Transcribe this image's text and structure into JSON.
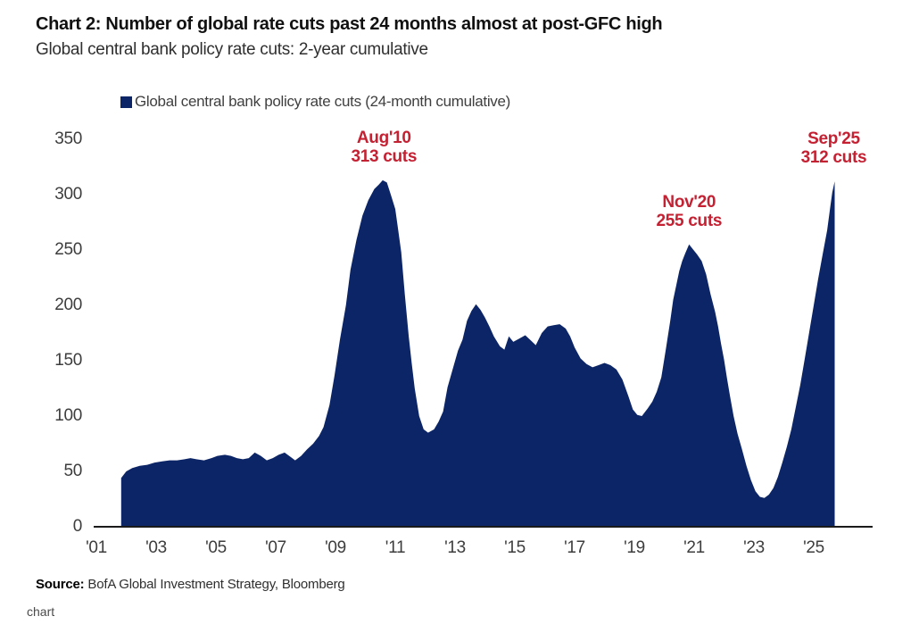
{
  "page": {
    "caption": "chart"
  },
  "header": {
    "title": "Chart 2: Number of global rate cuts past 24 months almost at post-GFC high",
    "subtitle": "Global central bank policy rate cuts: 2-year cumulative"
  },
  "legend": {
    "label": "Global central bank policy rate cuts (24-month cumulative)",
    "marker_color": "#0c2566"
  },
  "source": {
    "label": "Source:",
    "text": " BofA Global Investment Strategy, Bloomberg"
  },
  "chart_data": {
    "type": "area",
    "title": "Chart 2: Number of global rate cuts past 24 months almost at post-GFC high",
    "subtitle": "Global central bank policy rate cuts: 2-year cumulative",
    "series_name": "Global central bank policy rate cuts (24-month cumulative)",
    "fill_color": "#0c2566",
    "annotation_color": "#c42133",
    "axis_color": "#1a1a1a",
    "legend_position": "top",
    "grid": false,
    "ylim": [
      0,
      350
    ],
    "y_ticks": [
      "350",
      "300",
      "250",
      "200",
      "150",
      "100",
      "50",
      "0"
    ],
    "y_tick_values": [
      350,
      300,
      250,
      200,
      150,
      100,
      50,
      0
    ],
    "x_ticks": [
      "'01",
      "'03",
      "'05",
      "'07",
      "'09",
      "'11",
      "'13",
      "'15",
      "'17",
      "'19",
      "'21",
      "'23",
      "'25"
    ],
    "x_tick_years": [
      2001,
      2003,
      2005,
      2007,
      2009,
      2011,
      2013,
      2015,
      2017,
      2019,
      2021,
      2023,
      2025
    ],
    "annotations": [
      {
        "line1": "Aug'10",
        "line2": "313 cuts",
        "year": 2010.62,
        "value": 313
      },
      {
        "line1": "Nov'20",
        "line2": "255 cuts",
        "year": 2020.83,
        "value": 255
      },
      {
        "line1": "Sep'25",
        "line2": "312 cuts",
        "year": 2025.67,
        "value": 312
      }
    ],
    "points": [
      [
        2001.83,
        44
      ],
      [
        2002.0,
        50
      ],
      [
        2002.2,
        53
      ],
      [
        2002.45,
        55
      ],
      [
        2002.7,
        56
      ],
      [
        2002.95,
        58
      ],
      [
        2003.2,
        59
      ],
      [
        2003.45,
        60
      ],
      [
        2003.7,
        60
      ],
      [
        2003.95,
        61
      ],
      [
        2004.15,
        62
      ],
      [
        2004.35,
        61
      ],
      [
        2004.6,
        60
      ],
      [
        2004.85,
        62
      ],
      [
        2005.05,
        64
      ],
      [
        2005.3,
        65
      ],
      [
        2005.5,
        64
      ],
      [
        2005.7,
        62
      ],
      [
        2005.9,
        61
      ],
      [
        2006.1,
        62
      ],
      [
        2006.3,
        67
      ],
      [
        2006.5,
        64
      ],
      [
        2006.7,
        60
      ],
      [
        2006.9,
        62
      ],
      [
        2007.1,
        65
      ],
      [
        2007.3,
        67
      ],
      [
        2007.5,
        63
      ],
      [
        2007.65,
        60
      ],
      [
        2007.85,
        64
      ],
      [
        2008.05,
        70
      ],
      [
        2008.25,
        75
      ],
      [
        2008.45,
        82
      ],
      [
        2008.6,
        90
      ],
      [
        2008.8,
        110
      ],
      [
        2008.97,
        137
      ],
      [
        2009.15,
        169
      ],
      [
        2009.35,
        200
      ],
      [
        2009.5,
        232
      ],
      [
        2009.7,
        259
      ],
      [
        2009.9,
        281
      ],
      [
        2010.1,
        295
      ],
      [
        2010.3,
        305
      ],
      [
        2010.45,
        309
      ],
      [
        2010.58,
        313
      ],
      [
        2010.72,
        311
      ],
      [
        2010.85,
        300
      ],
      [
        2011.0,
        287
      ],
      [
        2011.1,
        268
      ],
      [
        2011.2,
        248
      ],
      [
        2011.32,
        210
      ],
      [
        2011.45,
        172
      ],
      [
        2011.55,
        148
      ],
      [
        2011.65,
        125
      ],
      [
        2011.8,
        100
      ],
      [
        2011.95,
        88
      ],
      [
        2012.1,
        85
      ],
      [
        2012.3,
        88
      ],
      [
        2012.45,
        95
      ],
      [
        2012.6,
        104
      ],
      [
        2012.75,
        126
      ],
      [
        2012.95,
        145
      ],
      [
        2013.1,
        159
      ],
      [
        2013.25,
        169
      ],
      [
        2013.4,
        186
      ],
      [
        2013.55,
        195
      ],
      [
        2013.7,
        201
      ],
      [
        2013.85,
        196
      ],
      [
        2014.0,
        189
      ],
      [
        2014.15,
        181
      ],
      [
        2014.3,
        172
      ],
      [
        2014.5,
        163
      ],
      [
        2014.65,
        160
      ],
      [
        2014.8,
        172
      ],
      [
        2014.95,
        167
      ],
      [
        2015.15,
        170
      ],
      [
        2015.35,
        173
      ],
      [
        2015.55,
        168
      ],
      [
        2015.7,
        164
      ],
      [
        2015.9,
        175
      ],
      [
        2016.1,
        181
      ],
      [
        2016.3,
        182
      ],
      [
        2016.5,
        183
      ],
      [
        2016.7,
        179
      ],
      [
        2016.85,
        172
      ],
      [
        2017.0,
        162
      ],
      [
        2017.2,
        152
      ],
      [
        2017.4,
        147
      ],
      [
        2017.6,
        144
      ],
      [
        2017.8,
        146
      ],
      [
        2018.0,
        148
      ],
      [
        2018.2,
        146
      ],
      [
        2018.4,
        142
      ],
      [
        2018.6,
        133
      ],
      [
        2018.8,
        118
      ],
      [
        2018.95,
        106
      ],
      [
        2019.1,
        101
      ],
      [
        2019.25,
        100
      ],
      [
        2019.45,
        107
      ],
      [
        2019.6,
        113
      ],
      [
        2019.75,
        122
      ],
      [
        2019.9,
        135
      ],
      [
        2020.05,
        160
      ],
      [
        2020.2,
        186
      ],
      [
        2020.3,
        205
      ],
      [
        2020.4,
        218
      ],
      [
        2020.5,
        231
      ],
      [
        2020.6,
        240
      ],
      [
        2020.7,
        247
      ],
      [
        2020.83,
        255
      ],
      [
        2020.95,
        251
      ],
      [
        2021.1,
        246
      ],
      [
        2021.25,
        240
      ],
      [
        2021.4,
        228
      ],
      [
        2021.55,
        210
      ],
      [
        2021.7,
        194
      ],
      [
        2021.8,
        181
      ],
      [
        2021.9,
        165
      ],
      [
        2022.0,
        151
      ],
      [
        2022.1,
        134
      ],
      [
        2022.2,
        118
      ],
      [
        2022.32,
        100
      ],
      [
        2022.45,
        84
      ],
      [
        2022.6,
        70
      ],
      [
        2022.75,
        55
      ],
      [
        2022.9,
        42
      ],
      [
        2023.05,
        32
      ],
      [
        2023.2,
        27
      ],
      [
        2023.35,
        26
      ],
      [
        2023.5,
        29
      ],
      [
        2023.65,
        35
      ],
      [
        2023.8,
        45
      ],
      [
        2023.95,
        58
      ],
      [
        2024.1,
        72
      ],
      [
        2024.25,
        88
      ],
      [
        2024.4,
        108
      ],
      [
        2024.55,
        128
      ],
      [
        2024.7,
        152
      ],
      [
        2024.85,
        176
      ],
      [
        2025.0,
        200
      ],
      [
        2025.15,
        224
      ],
      [
        2025.3,
        246
      ],
      [
        2025.45,
        268
      ],
      [
        2025.55,
        288
      ],
      [
        2025.62,
        302
      ],
      [
        2025.7,
        312
      ]
    ]
  }
}
